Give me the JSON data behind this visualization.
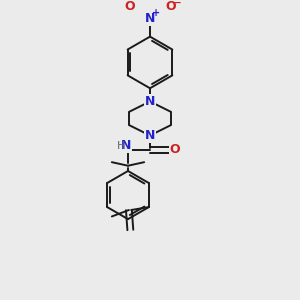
{
  "background_color": "#ebebeb",
  "bond_color": "#1a1a1a",
  "nitrogen_color": "#2222cc",
  "oxygen_color": "#cc2222",
  "hydrogen_color": "#666666",
  "line_width": 1.4,
  "font_size": 8.5,
  "xlim": [
    0.1,
    0.9
  ],
  "ylim": [
    0.04,
    0.97
  ]
}
